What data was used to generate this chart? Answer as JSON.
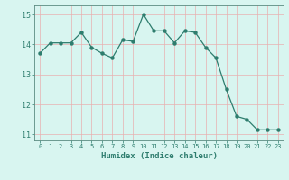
{
  "title": "",
  "xlabel": "Humidex (Indice chaleur)",
  "ylabel": "",
  "x": [
    0,
    1,
    2,
    3,
    4,
    5,
    6,
    7,
    8,
    9,
    10,
    11,
    12,
    13,
    14,
    15,
    16,
    17,
    18,
    19,
    20,
    21,
    22,
    23
  ],
  "y": [
    13.7,
    14.05,
    14.05,
    14.05,
    14.4,
    13.9,
    13.7,
    13.55,
    14.15,
    14.1,
    15.0,
    14.45,
    14.45,
    14.05,
    14.45,
    14.4,
    13.9,
    13.55,
    12.5,
    11.6,
    11.5,
    11.15,
    11.15,
    11.15
  ],
  "line_color": "#2e7d6e",
  "marker_color": "#2e7d6e",
  "bg_color": "#d8f5f0",
  "grid_color_v": "#e8b0b0",
  "grid_color_h": "#c8d8d4",
  "axes_color": "#5a8a80",
  "tick_label_color": "#2e7d6e",
  "ylim": [
    10.8,
    15.3
  ],
  "yticks": [
    11,
    12,
    13,
    14,
    15
  ],
  "xticks": [
    0,
    1,
    2,
    3,
    4,
    5,
    6,
    7,
    8,
    9,
    10,
    11,
    12,
    13,
    14,
    15,
    16,
    17,
    18,
    19,
    20,
    21,
    22,
    23
  ]
}
